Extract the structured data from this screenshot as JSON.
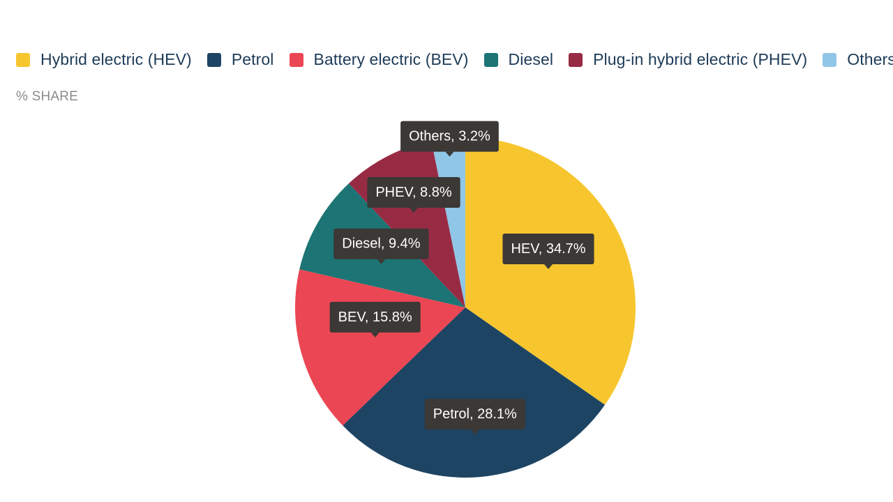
{
  "chart_data": {
    "type": "pie",
    "unit_label": "% SHARE",
    "legend_position": "top-left",
    "legend": [
      {
        "name": "Hybrid electric (HEV)",
        "color": "#f7c62f"
      },
      {
        "name": "Petrol",
        "color": "#1e4463"
      },
      {
        "name": "Battery electric (BEV)",
        "color": "#eb4653"
      },
      {
        "name": "Diesel",
        "color": "#1c7574"
      },
      {
        "name": "Plug-in hybrid electric (PHEV)",
        "color": "#982b44"
      },
      {
        "name": "Others",
        "color": "#90c6e6"
      }
    ],
    "slices": [
      {
        "label": "HEV, 34.7%",
        "value": 34.7,
        "color": "#f7c62f"
      },
      {
        "label": "Petrol, 28.1%",
        "value": 28.1,
        "color": "#1e4463"
      },
      {
        "label": "BEV, 15.8%",
        "value": 15.8,
        "color": "#eb4653"
      },
      {
        "label": "Diesel, 9.4%",
        "value": 9.4,
        "color": "#1c7574"
      },
      {
        "label": "PHEV, 8.8%",
        "value": 8.8,
        "color": "#982b44"
      },
      {
        "label": "Others, 3.2%",
        "value": 3.2,
        "color": "#90c6e6"
      }
    ]
  }
}
